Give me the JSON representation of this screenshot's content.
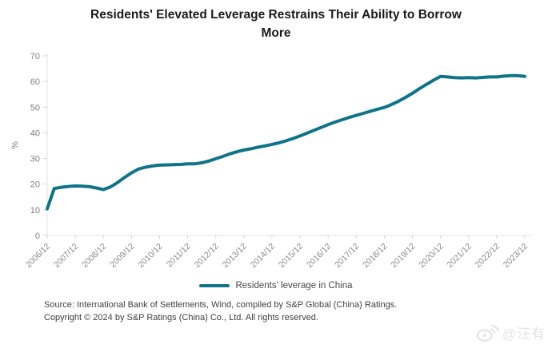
{
  "header": {
    "title_line1": "Residents' Elevated Leverage Restrains Their Ability to Borrow",
    "title_line2": "More"
  },
  "chart_data": {
    "type": "line",
    "title": "Residents' Elevated Leverage Restrains Their Ability to Borrow More",
    "xlabel": "",
    "ylabel": "%",
    "ylim": [
      0,
      70
    ],
    "yticks": [
      0,
      10,
      20,
      30,
      40,
      50,
      60,
      70
    ],
    "grid": false,
    "legend_position": "bottom",
    "x_frequency": "quarterly (ticks labeled yearly)",
    "x_labels": [
      "2006/12",
      "2007/12",
      "2008/12",
      "2009/12",
      "2010/12",
      "2011/12",
      "2012/12",
      "2013/12",
      "2014/12",
      "2015/12",
      "2016/12",
      "2017/12",
      "2018/12",
      "2019/12",
      "2020/12",
      "2021/12",
      "2022/12",
      "2023/12"
    ],
    "series": [
      {
        "name": "Residents' leverage in China",
        "values": [
          10.4,
          18.3,
          18.8,
          19.1,
          19.3,
          19.2,
          19.0,
          18.5,
          17.9,
          18.9,
          20.6,
          22.6,
          24.4,
          25.9,
          26.6,
          27.1,
          27.4,
          27.5,
          27.6,
          27.7,
          27.9,
          27.9,
          28.3,
          29.0,
          29.9,
          30.8,
          31.8,
          32.6,
          33.3,
          33.8,
          34.4,
          34.9,
          35.5,
          36.1,
          36.9,
          37.8,
          38.8,
          39.9,
          41.0,
          42.1,
          43.2,
          44.2,
          45.1,
          46.0,
          46.8,
          47.6,
          48.4,
          49.2,
          49.9,
          51.0,
          52.3,
          53.8,
          55.4,
          57.2,
          58.9,
          60.5,
          62.0,
          61.8,
          61.5,
          61.4,
          61.5,
          61.4,
          61.6,
          61.8,
          61.8,
          62.1,
          62.3,
          62.3,
          62.0
        ]
      }
    ],
    "line_color": "#0f7389",
    "axis_line_color": "#e3e3e3",
    "tick_mark_color": "#d4d4d4"
  },
  "legend": {
    "label": "Residents' leverage in China"
  },
  "source": {
    "line1": "Source: International Bank of Settlements, Wind, compiled by S&P Global (China) Ratings.",
    "line2": "Copyright © 2024 by S&P Ratings (China) Co., Ltd. All rights reserved."
  },
  "watermark": {
    "text": "@汪有"
  }
}
